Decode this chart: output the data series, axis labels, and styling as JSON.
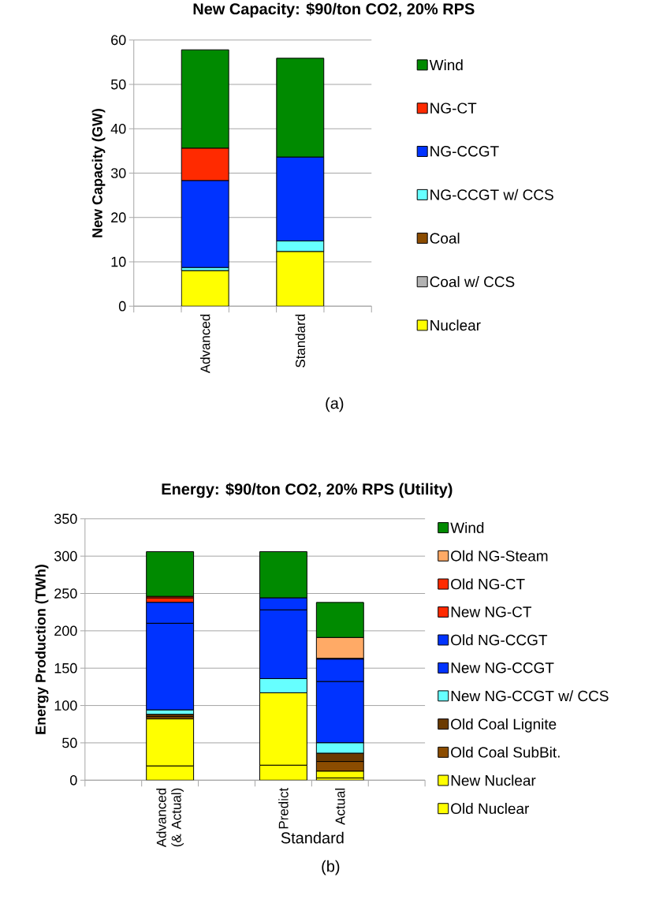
{
  "chart_data": [
    {
      "type": "bar",
      "title": "New Capacity: $90/ton CO2, 20% RPS",
      "ylabel": "New Capacity (GW)",
      "stacked": true,
      "grid": "y",
      "legend": "right",
      "categories": [
        null,
        "Advanced",
        null,
        "Standard",
        null
      ],
      "ylim": [
        0,
        60
      ],
      "yticks": [
        0,
        10,
        20,
        30,
        40,
        50,
        60
      ],
      "annotations": [
        "(a)"
      ],
      "series": [
        {
          "name": "Nuclear",
          "color": "#ffff00",
          "values": [
            null,
            8.0,
            null,
            12.3,
            null
          ]
        },
        {
          "name": "Coal w/ CCS",
          "color": "#b2b2b2",
          "values": [
            null,
            0,
            null,
            0,
            null
          ]
        },
        {
          "name": "Coal",
          "color": "#8b4c00",
          "values": [
            null,
            0,
            null,
            0,
            null
          ]
        },
        {
          "name": "NG-CCGT w/ CCS",
          "color": "#66ffff",
          "values": [
            null,
            0.7,
            null,
            2.4,
            null
          ]
        },
        {
          "name": "NG-CCGT",
          "color": "#0033ff",
          "values": [
            null,
            19.6,
            null,
            18.9,
            null
          ]
        },
        {
          "name": "NG-CT",
          "color": "#ff2a00",
          "values": [
            null,
            7.3,
            null,
            0,
            null
          ]
        },
        {
          "name": "Wind",
          "color": "#008a00",
          "values": [
            null,
            22.2,
            null,
            22.3,
            null
          ]
        }
      ]
    },
    {
      "type": "bar",
      "title": "Energy: $90/ton CO2, 20% RPS (Utility)",
      "ylabel": "Energy Production (TWh)",
      "xlabel": "Standard",
      "stacked": true,
      "grid": "y",
      "legend": "right",
      "categories": [
        null,
        "Advanced (& Actual)",
        null,
        "Predict",
        "Actual",
        null
      ],
      "ylim": [
        0,
        350
      ],
      "yticks": [
        0,
        50,
        100,
        150,
        200,
        250,
        300,
        350
      ],
      "annotations": [
        "(b)"
      ],
      "series": [
        {
          "name": "Old Nuclear",
          "color": "#ffff00",
          "values": [
            null,
            19,
            null,
            20,
            3,
            null
          ]
        },
        {
          "name": "New Nuclear",
          "color": "#ffff00",
          "values": [
            null,
            63,
            null,
            97,
            9,
            null
          ]
        },
        {
          "name": "Old Coal SubBit.",
          "color": "#8b4c00",
          "values": [
            null,
            3,
            null,
            0,
            13,
            null
          ]
        },
        {
          "name": "Old Coal Lignite",
          "color": "#6b3a00",
          "values": [
            null,
            3,
            null,
            0,
            11,
            null
          ]
        },
        {
          "name": "New NG-CCGT w/ CCS",
          "color": "#66ffff",
          "values": [
            null,
            6,
            null,
            19,
            14,
            null
          ]
        },
        {
          "name": "New NG-CCGT",
          "color": "#0033ff",
          "values": [
            null,
            116,
            null,
            92,
            82,
            null
          ]
        },
        {
          "name": "Old NG-CCGT",
          "color": "#0033ff",
          "values": [
            null,
            28,
            null,
            16,
            30,
            null
          ]
        },
        {
          "name": "New NG-CT",
          "color": "#ff2a00",
          "values": [
            null,
            6,
            null,
            0,
            0,
            null
          ]
        },
        {
          "name": "Old NG-CT",
          "color": "#ff2a00",
          "values": [
            null,
            2,
            null,
            0,
            1,
            null
          ]
        },
        {
          "name": "Old NG-Steam",
          "color": "#ffaa66",
          "values": [
            null,
            0,
            null,
            0,
            28,
            null
          ]
        },
        {
          "name": "Wind",
          "color": "#008a00",
          "values": [
            null,
            60,
            null,
            62,
            47,
            null
          ]
        }
      ]
    }
  ]
}
